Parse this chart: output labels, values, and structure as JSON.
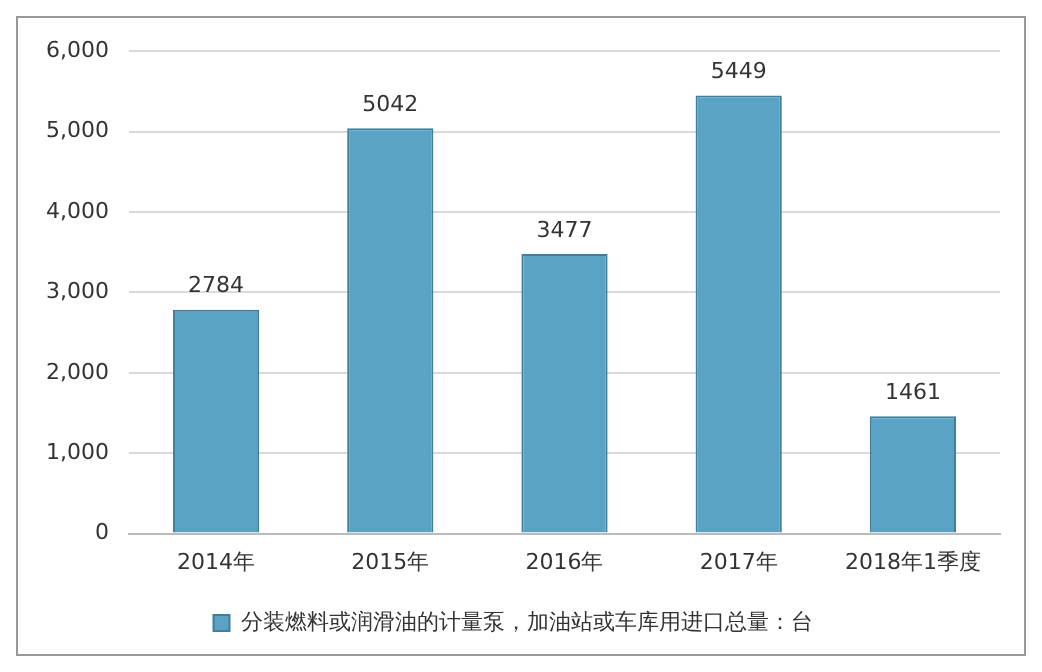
{
  "chart_data": {
    "type": "bar",
    "categories": [
      "2014年",
      "2015年",
      "2016年",
      "2017年",
      "2018年1季度"
    ],
    "series": [
      {
        "name": "分装燃料或润滑油的计量泵，加油站或车库用进口总量：台",
        "color": "#5ba3c4",
        "values": [
          2784,
          5042,
          3477,
          5449,
          1461
        ]
      }
    ],
    "ylim": [
      0,
      6000
    ],
    "yticks": [
      {
        "value": 0,
        "label": "0"
      },
      {
        "value": 1000,
        "label": "1,000"
      },
      {
        "value": 2000,
        "label": "2,000"
      },
      {
        "value": 3000,
        "label": "3,000"
      },
      {
        "value": 4000,
        "label": "4,000"
      },
      {
        "value": 5000,
        "label": "5,000"
      },
      {
        "value": 6000,
        "label": "6,000"
      }
    ],
    "grid": "y",
    "legend": "bottom",
    "data_labels": true
  }
}
